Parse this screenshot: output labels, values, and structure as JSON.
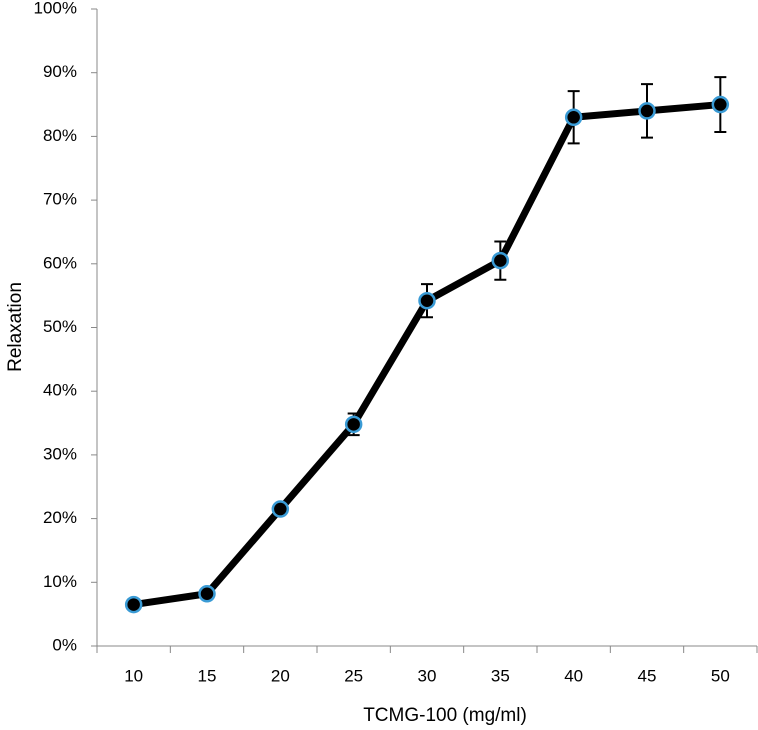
{
  "chart_data": {
    "type": "line",
    "x_label": "TCMG-100 (mg/ml)",
    "y_label": "Relaxation",
    "categories": [
      "10",
      "15",
      "20",
      "25",
      "30",
      "35",
      "40",
      "45",
      "50"
    ],
    "values": [
      6.5,
      8.2,
      21.5,
      34.8,
      54.2,
      60.5,
      83.0,
      84.0,
      85.0
    ],
    "errors": [
      0.5,
      0.5,
      0.8,
      1.7,
      2.6,
      3.0,
      4.1,
      4.2,
      4.3
    ],
    "color": "#000000",
    "marker_edge_color": "#3a9bd5",
    "ylim": [
      0,
      100
    ],
    "yticks": [
      {
        "value": 0,
        "label": "0%"
      },
      {
        "value": 10,
        "label": "10%"
      },
      {
        "value": 20,
        "label": "20%"
      },
      {
        "value": 30,
        "label": "30%"
      },
      {
        "value": 40,
        "label": "40%"
      },
      {
        "value": 50,
        "label": "50%"
      },
      {
        "value": 60,
        "label": "60%"
      },
      {
        "value": 70,
        "label": "70%"
      },
      {
        "value": 80,
        "label": "80%"
      },
      {
        "value": 90,
        "label": "90%"
      },
      {
        "value": 100,
        "label": "100%"
      }
    ],
    "grid": false
  }
}
